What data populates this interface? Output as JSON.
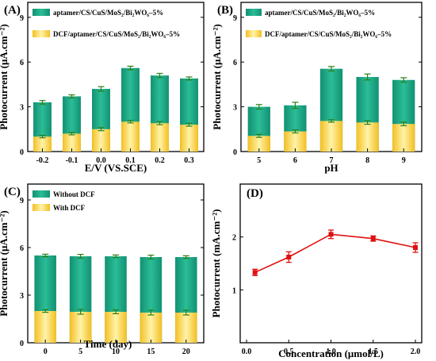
{
  "colors": {
    "green_top": "#169c7e",
    "green_bottom": "#27b894",
    "yellow_top": "#f6cf3a",
    "yellow_mid": "#fde98a",
    "yellow_bottom": "#f6c22c",
    "error_bar": "#2e7d14",
    "line_red": "#e01010",
    "axis": "#000000"
  },
  "chart_data": [
    {
      "id": "A",
      "type": "bar",
      "panel_label": "(A)",
      "xlabel": "E/V (VS.SCE)",
      "ylabel": "Photocurrent (μA.cm⁻²)",
      "categories": [
        "-0.2",
        "-0.1",
        "0.0",
        "0.1",
        "0.2",
        "0.3"
      ],
      "ylim": [
        0,
        10
      ],
      "yticks": [
        0,
        3,
        6,
        9
      ],
      "legend_position": "top",
      "series": [
        {
          "name": "aptamer/CS/CuS/MoS₂/Bi₂WO₆–5%",
          "values": [
            3.3,
            3.7,
            4.2,
            5.6,
            5.1,
            4.9
          ],
          "errors": [
            0.12,
            0.1,
            0.15,
            0.12,
            0.14,
            0.1
          ]
        },
        {
          "name": "DCF/aptamer/CS/CuS/MoS₂/Bi₂WO₆–5%",
          "values": [
            1.0,
            1.2,
            1.5,
            2.0,
            1.9,
            1.8
          ],
          "errors": [
            0.08,
            0.08,
            0.1,
            0.08,
            0.1,
            0.1
          ]
        }
      ]
    },
    {
      "id": "B",
      "type": "bar",
      "panel_label": "(B)",
      "xlabel": "pH",
      "ylabel": "Photocurrent (μA.cm⁻²)",
      "categories": [
        "5",
        "6",
        "7",
        "8",
        "9"
      ],
      "ylim": [
        0,
        10
      ],
      "yticks": [
        0,
        3,
        6,
        9
      ],
      "legend_position": "top",
      "series": [
        {
          "name": "aptamer/CS/CuS/MoS₂/Bi₂WO₆–5%",
          "values": [
            3.0,
            3.1,
            5.55,
            5.0,
            4.8
          ],
          "errors": [
            0.15,
            0.2,
            0.15,
            0.2,
            0.15
          ]
        },
        {
          "name": "DCF/aptamer/CS/CuS/MoS₂/Bi₂WO₆–5%",
          "values": [
            1.05,
            1.35,
            2.05,
            1.95,
            1.85
          ],
          "errors": [
            0.1,
            0.1,
            0.08,
            0.12,
            0.12
          ]
        }
      ]
    },
    {
      "id": "C",
      "type": "bar",
      "panel_label": "(C)",
      "xlabel": "Time (day)",
      "ylabel": "Photocurrent (μA.cm⁻²)",
      "categories": [
        "0",
        "5",
        "10",
        "15",
        "20"
      ],
      "ylim": [
        0,
        10
      ],
      "yticks": [
        0,
        3,
        6,
        9
      ],
      "legend_position": "top-left",
      "series": [
        {
          "name": "Without DCF",
          "values": [
            5.5,
            5.45,
            5.45,
            5.4,
            5.4
          ],
          "errors": [
            0.08,
            0.12,
            0.08,
            0.12,
            0.08
          ]
        },
        {
          "name": "With DCF",
          "values": [
            2.0,
            1.95,
            1.95,
            1.9,
            1.9
          ],
          "errors": [
            0.08,
            0.15,
            0.12,
            0.15,
            0.15
          ]
        }
      ]
    },
    {
      "id": "D",
      "type": "line",
      "panel_label": "(D)",
      "xlabel": "Concentration (μmol/L)",
      "ylabel": "Photocurrent (mA.cm⁻²)",
      "xlim": [
        0.0,
        2.0
      ],
      "xticks": [
        "0.0",
        "0.5",
        "1.0",
        "1.5",
        "2.0"
      ],
      "ylim": [
        0,
        3
      ],
      "yticks": [
        "1",
        "2"
      ],
      "series": [
        {
          "x": [
            0.1,
            0.5,
            1.0,
            1.5,
            2.0
          ],
          "y": [
            1.33,
            1.62,
            2.05,
            1.97,
            1.8
          ],
          "errors": [
            0.06,
            0.1,
            0.08,
            0.05,
            0.09
          ]
        }
      ]
    }
  ]
}
